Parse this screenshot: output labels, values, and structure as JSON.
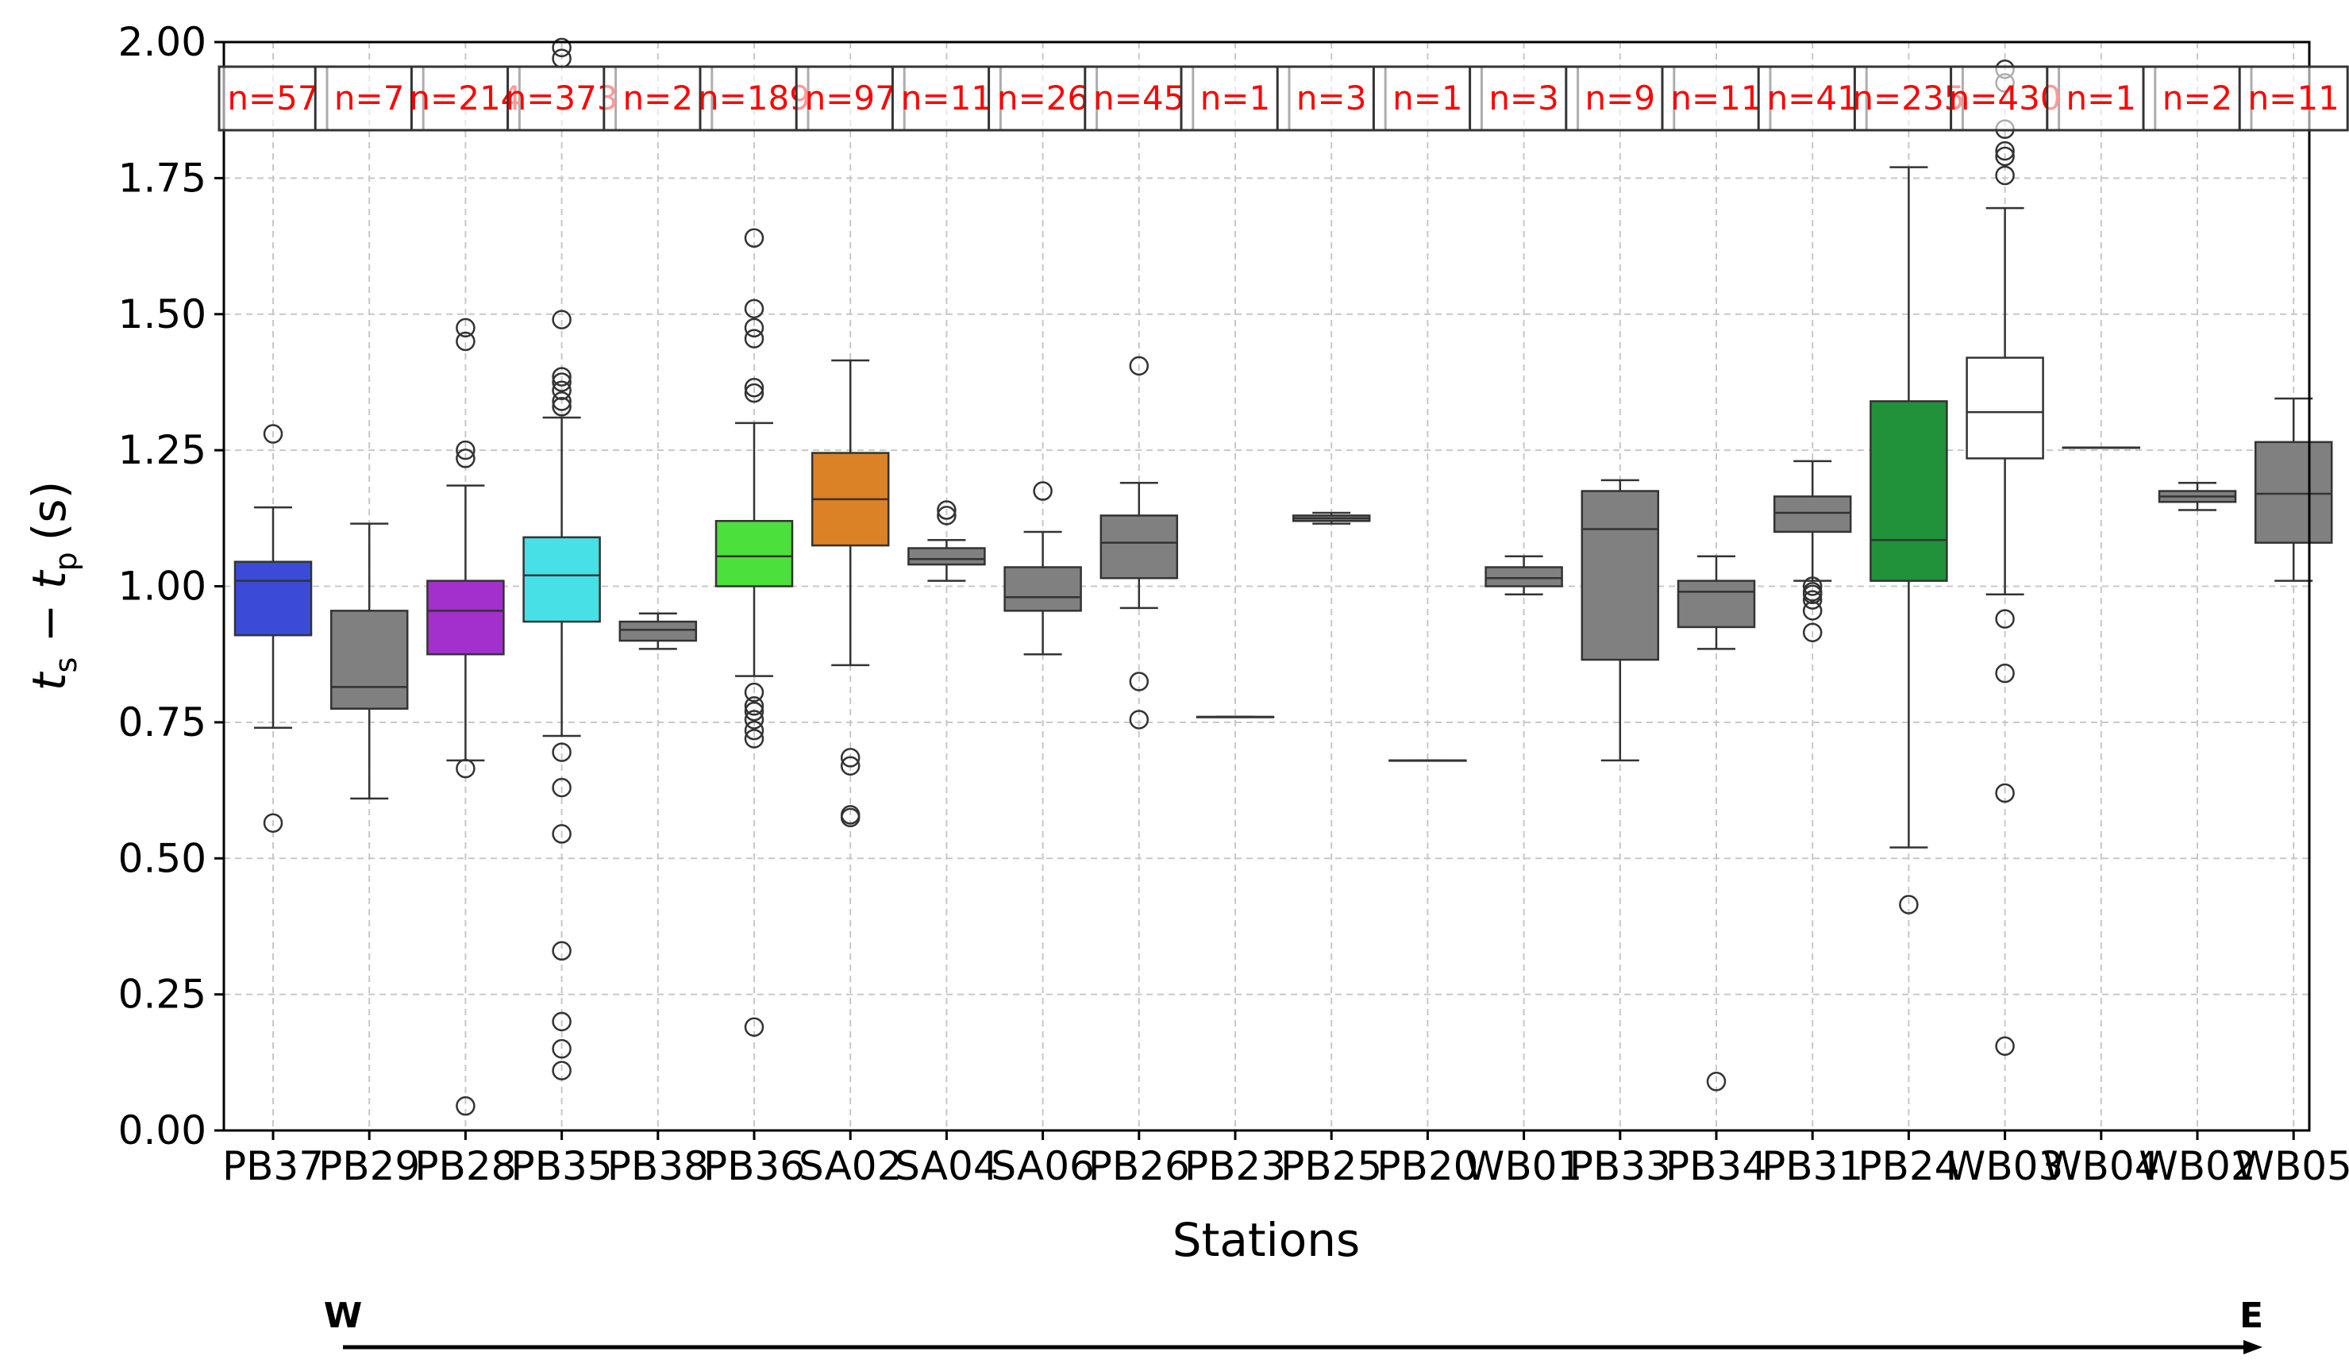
{
  "chart_data": {
    "type": "box",
    "xlabel": "Stations",
    "ylabel_main": "t",
    "ylabel_sub_s": "s",
    "ylabel_sub_p": "p",
    "ylabel_units": "(s)",
    "ylim": [
      0,
      2.0
    ],
    "yticks": [
      "0.00",
      "0.25",
      "0.50",
      "0.75",
      "1.00",
      "1.25",
      "1.50",
      "1.75",
      "2.00"
    ],
    "grid": true,
    "direction": {
      "left": "W",
      "right": "E"
    },
    "stations": [
      {
        "name": "PB37",
        "color": "#3b4bd8",
        "n": "n=57",
        "q1": 0.91,
        "median": 1.01,
        "q3": 1.045,
        "wlo": 0.74,
        "whi": 1.145,
        "outliers": [
          1.28,
          0.565
        ]
      },
      {
        "name": "PB29",
        "color": "#808080",
        "n": "n=7",
        "q1": 0.775,
        "median": 0.815,
        "q3": 0.955,
        "wlo": 0.61,
        "whi": 1.115,
        "outliers": []
      },
      {
        "name": "PB28",
        "color": "#a32fcc",
        "n": "n=214",
        "q1": 0.875,
        "median": 0.955,
        "q3": 1.01,
        "wlo": 0.68,
        "whi": 1.185,
        "outliers": [
          1.475,
          1.45,
          1.25,
          1.235,
          0.665,
          0.045
        ]
      },
      {
        "name": "PB35",
        "color": "#46e0e6",
        "n": "n=373",
        "q1": 0.935,
        "median": 1.02,
        "q3": 1.09,
        "wlo": 0.725,
        "whi": 1.31,
        "outliers": [
          1.99,
          1.97,
          1.49,
          1.385,
          1.375,
          1.36,
          1.34,
          1.33,
          0.695,
          0.63,
          0.545,
          0.33,
          0.2,
          0.15,
          0.11
        ]
      },
      {
        "name": "PB38",
        "color": "#808080",
        "n": "n=2",
        "q1": 0.9,
        "median": 0.92,
        "q3": 0.935,
        "wlo": 0.885,
        "whi": 0.95,
        "outliers": []
      },
      {
        "name": "PB36",
        "color": "#4ce03c",
        "n": "n=189",
        "q1": 1.0,
        "median": 1.055,
        "q3": 1.12,
        "wlo": 0.835,
        "whi": 1.3,
        "outliers": [
          1.64,
          1.51,
          1.475,
          1.455,
          1.365,
          1.355,
          0.805,
          0.78,
          0.77,
          0.755,
          0.735,
          0.72,
          0.19
        ]
      },
      {
        "name": "SA02",
        "color": "#db8227",
        "n": "n=97",
        "q1": 1.075,
        "median": 1.16,
        "q3": 1.245,
        "wlo": 0.855,
        "whi": 1.415,
        "outliers": [
          0.685,
          0.67,
          0.58,
          0.575
        ]
      },
      {
        "name": "SA04",
        "color": "#808080",
        "n": "n=11",
        "q1": 1.04,
        "median": 1.05,
        "q3": 1.07,
        "wlo": 1.01,
        "whi": 1.085,
        "outliers": [
          1.14,
          1.13
        ]
      },
      {
        "name": "SA06",
        "color": "#808080",
        "n": "n=26",
        "q1": 0.955,
        "median": 0.98,
        "q3": 1.035,
        "wlo": 0.875,
        "whi": 1.1,
        "outliers": [
          1.175
        ]
      },
      {
        "name": "PB26",
        "color": "#808080",
        "n": "n=45",
        "q1": 1.015,
        "median": 1.08,
        "q3": 1.13,
        "wlo": 0.96,
        "whi": 1.19,
        "outliers": [
          1.405,
          0.825,
          0.755
        ]
      },
      {
        "name": "PB23",
        "color": "#808080",
        "n": "n=1",
        "q1": 0.76,
        "median": 0.76,
        "q3": 0.76,
        "wlo": 0.76,
        "whi": 0.76,
        "outliers": []
      },
      {
        "name": "PB25",
        "color": "#808080",
        "n": "n=3",
        "q1": 1.12,
        "median": 1.125,
        "q3": 1.13,
        "wlo": 1.115,
        "whi": 1.135,
        "outliers": []
      },
      {
        "name": "PB20",
        "color": "#808080",
        "n": "n=1",
        "q1": 0.68,
        "median": 0.68,
        "q3": 0.68,
        "wlo": 0.68,
        "whi": 0.68,
        "outliers": []
      },
      {
        "name": "WB01",
        "color": "#808080",
        "n": "n=3",
        "q1": 1.0,
        "median": 1.015,
        "q3": 1.035,
        "wlo": 0.985,
        "whi": 1.055,
        "outliers": []
      },
      {
        "name": "PB33",
        "color": "#808080",
        "n": "n=9",
        "q1": 0.865,
        "median": 1.105,
        "q3": 1.175,
        "wlo": 0.68,
        "whi": 1.195,
        "outliers": []
      },
      {
        "name": "PB34",
        "color": "#808080",
        "n": "n=11",
        "q1": 0.925,
        "median": 0.99,
        "q3": 1.01,
        "wlo": 0.885,
        "whi": 1.055,
        "outliers": [
          0.09
        ]
      },
      {
        "name": "PB31",
        "color": "#808080",
        "n": "n=41",
        "q1": 1.1,
        "median": 1.135,
        "q3": 1.165,
        "wlo": 1.01,
        "whi": 1.23,
        "outliers": [
          1.0,
          0.99,
          0.985,
          0.975,
          0.955,
          0.915
        ]
      },
      {
        "name": "PB24",
        "color": "#22923a",
        "n": "n=235",
        "q1": 1.01,
        "median": 1.085,
        "q3": 1.34,
        "wlo": 0.52,
        "whi": 1.77,
        "outliers": [
          0.415
        ]
      },
      {
        "name": "WB03",
        "color": "#ffffff",
        "n": "n=430",
        "q1": 1.235,
        "median": 1.32,
        "q3": 1.42,
        "wlo": 0.985,
        "whi": 1.695,
        "outliers": [
          1.95,
          1.925,
          1.84,
          1.8,
          1.79,
          1.755,
          0.94,
          0.84,
          0.62,
          0.155
        ]
      },
      {
        "name": "WB04",
        "color": "#808080",
        "n": "n=1",
        "q1": 1.255,
        "median": 1.255,
        "q3": 1.255,
        "wlo": 1.255,
        "whi": 1.255,
        "outliers": []
      },
      {
        "name": "WB02",
        "color": "#808080",
        "n": "n=2",
        "q1": 1.155,
        "median": 1.165,
        "q3": 1.175,
        "wlo": 1.14,
        "whi": 1.19,
        "outliers": []
      },
      {
        "name": "WB05",
        "color": "#808080",
        "n": "n=11",
        "q1": 1.08,
        "median": 1.17,
        "q3": 1.265,
        "wlo": 1.01,
        "whi": 1.345,
        "outliers": []
      }
    ]
  }
}
